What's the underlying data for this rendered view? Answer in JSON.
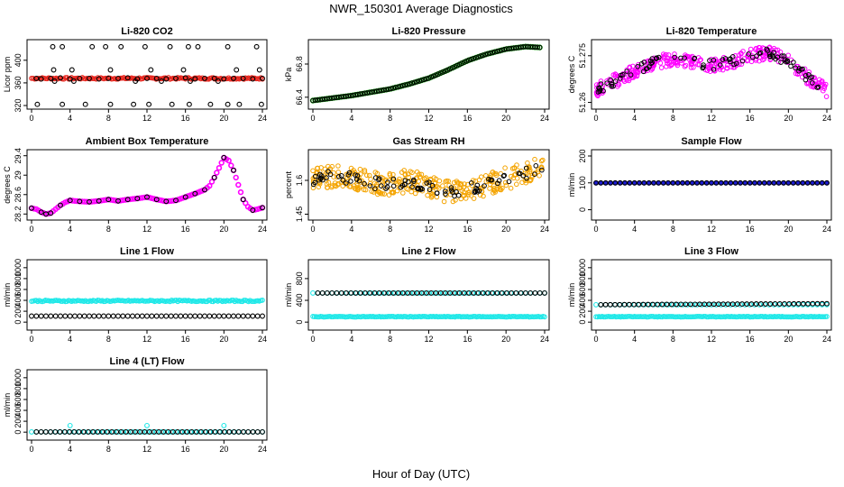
{
  "figure": {
    "title": "NWR_150301  Average Diagnostics",
    "xlabel": "Hour of Day (UTC)"
  },
  "colors": {
    "black": "#000000",
    "red": "#e8251d",
    "green": "#22c31f",
    "magenta": "#ff00ff",
    "orange": "#f4a400",
    "blue": "#1c1ccf",
    "cyan": "#1fe8e8"
  },
  "chart_data": [
    {
      "type": "scatter",
      "title": "Li-820 CO2",
      "ylabel": "Licor ppm",
      "xlim": [
        0,
        24
      ],
      "ylim": [
        320,
        430
      ],
      "xticks": [
        0,
        4,
        8,
        12,
        16,
        20,
        24
      ],
      "yticks": [
        320,
        360,
        400
      ],
      "series": [
        {
          "color": "red",
          "style": "band",
          "x": [
            0,
            24
          ],
          "y": [
            368,
            368
          ],
          "spread": 3
        },
        {
          "color": "black",
          "style": "points",
          "x": [
            0.5,
            1,
            2,
            3,
            4,
            5,
            6,
            7,
            8,
            9,
            10,
            11,
            12,
            13,
            14,
            15,
            16,
            17,
            18,
            19,
            20,
            21,
            22,
            23,
            24
          ],
          "y": [
            368,
            367,
            368,
            369,
            367,
            368,
            368,
            367,
            368,
            368,
            369,
            367,
            368,
            368,
            367,
            368,
            369,
            367,
            368,
            368,
            367,
            368,
            368,
            367,
            368
          ]
        },
        {
          "color": "black",
          "style": "points",
          "x": [
            2.2,
            2.3,
            2.4,
            3.2,
            4.2,
            4.4,
            6.3,
            7.7,
            8.2,
            9.3,
            10.8,
            11.8,
            12.4,
            13.5,
            14.4,
            15.8,
            16.3,
            16.5,
            17.3,
            19.4,
            20.4,
            21.3,
            23.4,
            23.7
          ],
          "y": [
            424,
            383,
            363,
            424,
            383,
            363,
            424,
            424,
            383,
            424,
            363,
            424,
            383,
            363,
            424,
            383,
            424,
            363,
            424,
            363,
            424,
            383,
            424,
            383
          ]
        },
        {
          "color": "black",
          "style": "points",
          "x": [
            0.6,
            3.2,
            5.6,
            8.2,
            10.6,
            12.2,
            14.6,
            16.4,
            18.6,
            20.4,
            21.6,
            23.9
          ],
          "y": [
            322,
            322,
            322,
            322,
            322,
            322,
            322,
            322,
            322,
            322,
            322,
            322
          ]
        }
      ]
    },
    {
      "type": "scatter",
      "title": "Li-820 Pressure",
      "ylabel": "kPa",
      "xlim": [
        0,
        24
      ],
      "ylim": [
        66.3,
        67.05
      ],
      "xticks": [
        0,
        4,
        8,
        12,
        16,
        20,
        24
      ],
      "yticks": [
        66.4,
        66.8
      ],
      "series": [
        {
          "color": "green",
          "style": "curve",
          "x": [
            0,
            2,
            4,
            6,
            8,
            10,
            12,
            14,
            16,
            18,
            20,
            22,
            23.5
          ],
          "y": [
            66.36,
            66.39,
            66.42,
            66.46,
            66.5,
            66.56,
            66.63,
            66.73,
            66.84,
            66.92,
            66.98,
            67.01,
            67.0
          ]
        },
        {
          "color": "black",
          "style": "curve",
          "x": [
            0,
            2,
            4,
            6,
            8,
            10,
            12,
            14,
            16,
            18,
            20,
            22,
            23.5
          ],
          "y": [
            66.36,
            66.39,
            66.42,
            66.46,
            66.5,
            66.56,
            66.63,
            66.73,
            66.84,
            66.92,
            66.98,
            67.01,
            67.0
          ]
        }
      ]
    },
    {
      "type": "scatter",
      "title": "Li-820 Temperature",
      "ylabel": "degrees C",
      "xlim": [
        0,
        24
      ],
      "ylim": [
        51.259,
        51.279
      ],
      "xticks": [
        0,
        4,
        8,
        12,
        16,
        20,
        24
      ],
      "yticks": [
        51.26,
        51.275
      ],
      "series": [
        {
          "color": "magenta",
          "style": "noisy",
          "x": [
            0,
            2,
            4,
            6,
            8,
            10,
            12,
            14,
            16,
            18,
            20,
            22,
            24
          ],
          "y": [
            51.264,
            51.267,
            51.27,
            51.273,
            51.274,
            51.273,
            51.272,
            51.273,
            51.275,
            51.276,
            51.273,
            51.268,
            51.264
          ],
          "spread": 0.0045
        },
        {
          "color": "black",
          "style": "noisy",
          "x": [
            0,
            2,
            4,
            6,
            8,
            10,
            12,
            14,
            16,
            18,
            20,
            22,
            24
          ],
          "y": [
            51.264,
            51.267,
            51.27,
            51.273,
            51.274,
            51.273,
            51.272,
            51.273,
            51.275,
            51.276,
            51.273,
            51.268,
            51.264
          ],
          "spread": 0.003
        }
      ]
    },
    {
      "type": "scatter",
      "title": "Ambient Box Temperature",
      "ylabel": "degrees C",
      "xlim": [
        0,
        24
      ],
      "ylim": [
        28.15,
        29.45
      ],
      "xticks": [
        0,
        4,
        8,
        12,
        16,
        20,
        24
      ],
      "yticks": [
        28.2,
        28.6,
        29.0,
        29.4
      ],
      "series": [
        {
          "color": "magenta",
          "style": "curve",
          "x": [
            0,
            0.5,
            1,
            1.5,
            2,
            2.5,
            3,
            3.5,
            4,
            5,
            6,
            7,
            8,
            9,
            10,
            11,
            12,
            13,
            14,
            15,
            16,
            17,
            18,
            18.5,
            19,
            19.5,
            20,
            20.5,
            21,
            21.5,
            22,
            22.5,
            23,
            23.5,
            24
          ],
          "y": [
            28.32,
            28.3,
            28.24,
            28.2,
            28.22,
            28.3,
            28.38,
            28.44,
            28.48,
            28.46,
            28.45,
            28.47,
            28.5,
            28.47,
            28.5,
            28.52,
            28.55,
            28.5,
            28.46,
            28.48,
            28.55,
            28.62,
            28.7,
            28.78,
            28.95,
            29.15,
            29.36,
            29.3,
            29.1,
            28.8,
            28.5,
            28.35,
            28.28,
            28.3,
            28.33
          ]
        },
        {
          "color": "black",
          "style": "points",
          "x": [
            0,
            1,
            1.5,
            2,
            3,
            4,
            5,
            6,
            7,
            8,
            9,
            10,
            11,
            12,
            13,
            14,
            15,
            16,
            17,
            18,
            19,
            20,
            21,
            22,
            23,
            24
          ],
          "y": [
            28.32,
            28.24,
            28.2,
            28.22,
            28.38,
            28.48,
            28.46,
            28.45,
            28.47,
            28.5,
            28.47,
            28.5,
            28.52,
            28.55,
            28.5,
            28.46,
            28.48,
            28.55,
            28.62,
            28.7,
            28.95,
            29.36,
            29.1,
            28.5,
            28.28,
            28.33
          ]
        }
      ]
    },
    {
      "type": "scatter",
      "title": "Gas Stream RH",
      "ylabel": "percent",
      "xlim": [
        0,
        24
      ],
      "ylim": [
        1.44,
        1.72
      ],
      "xticks": [
        0,
        4,
        8,
        12,
        16,
        20,
        24
      ],
      "yticks": [
        1.45,
        1.6
      ],
      "series": [
        {
          "color": "orange",
          "style": "noisy",
          "x": [
            0,
            2,
            4,
            6,
            8,
            10,
            12,
            14,
            16,
            18,
            20,
            22,
            24
          ],
          "y": [
            1.6,
            1.62,
            1.61,
            1.59,
            1.58,
            1.6,
            1.57,
            1.55,
            1.56,
            1.58,
            1.61,
            1.63,
            1.66
          ],
          "spread": 0.1
        },
        {
          "color": "black",
          "style": "noisy",
          "x": [
            0,
            2,
            4,
            6,
            8,
            10,
            12,
            14,
            16,
            18,
            20,
            22,
            24
          ],
          "y": [
            1.6,
            1.62,
            1.61,
            1.59,
            1.58,
            1.6,
            1.57,
            1.55,
            1.56,
            1.58,
            1.61,
            1.63,
            1.66
          ],
          "spread": 0.05
        }
      ]
    },
    {
      "type": "scatter",
      "title": "Sample Flow",
      "ylabel": "ml/min",
      "xlim": [
        0,
        24
      ],
      "ylim": [
        -25,
        210
      ],
      "xticks": [
        0,
        4,
        8,
        12,
        16,
        20,
        24
      ],
      "yticks": [
        0,
        100,
        200
      ],
      "series": [
        {
          "color": "blue",
          "style": "points",
          "x": [
            0,
            24
          ],
          "y": [
            100,
            100
          ],
          "fill": true
        },
        {
          "color": "black",
          "style": "points",
          "x": [
            0,
            24
          ],
          "y": [
            100,
            100
          ]
        }
      ]
    },
    {
      "type": "scatter",
      "title": "Line 1 Flow",
      "ylabel": "ml/min",
      "xlim": [
        0,
        24
      ],
      "ylim": [
        -80,
        1080
      ],
      "xticks": [
        0,
        4,
        8,
        12,
        16,
        20,
        24
      ],
      "yticks": [
        0,
        200,
        400,
        600,
        800,
        1000
      ],
      "series": [
        {
          "color": "cyan",
          "style": "band",
          "x": [
            0,
            24
          ],
          "y": [
            390,
            390
          ],
          "spread": 25
        },
        {
          "color": "black",
          "style": "points",
          "x": [
            0,
            24
          ],
          "y": [
            110,
            110
          ]
        }
      ]
    },
    {
      "type": "scatter",
      "title": "Line 2 Flow",
      "ylabel": "ml/min",
      "xlim": [
        0,
        24
      ],
      "ylim": [
        -80,
        1080
      ],
      "xticks": [
        0,
        4,
        8,
        12,
        16,
        20,
        24
      ],
      "yticks": [
        0,
        400,
        800
      ],
      "series": [
        {
          "color": "cyan",
          "style": "band",
          "x": [
            0,
            24
          ],
          "y": [
            100,
            100
          ],
          "spread": 12
        },
        {
          "color": "cyan",
          "style": "points",
          "x": [
            0,
            24
          ],
          "y": [
            535,
            535
          ]
        },
        {
          "color": "black",
          "style": "points",
          "x": [
            0.5,
            24
          ],
          "y": [
            535,
            535
          ]
        }
      ]
    },
    {
      "type": "scatter",
      "title": "Line 3 Flow",
      "ylabel": "ml/min",
      "xlim": [
        0,
        24
      ],
      "ylim": [
        -80,
        1080
      ],
      "xticks": [
        0,
        4,
        8,
        12,
        16,
        20,
        24
      ],
      "yticks": [
        0,
        200,
        400,
        600,
        800,
        1000
      ],
      "series": [
        {
          "color": "cyan",
          "style": "band",
          "x": [
            0,
            24
          ],
          "y": [
            100,
            100
          ],
          "spread": 12
        },
        {
          "color": "cyan",
          "style": "points",
          "x": [
            0,
            24
          ],
          "y": [
            320,
            320
          ]
        },
        {
          "color": "black",
          "style": "points",
          "x": [
            0.5,
            24
          ],
          "y": [
            320,
            340
          ]
        }
      ]
    },
    {
      "type": "scatter",
      "title": "Line 4 (LT) Flow",
      "ylabel": "ml/min",
      "xlim": [
        0,
        24
      ],
      "ylim": [
        -80,
        1080
      ],
      "xticks": [
        0,
        4,
        8,
        12,
        16,
        20,
        24
      ],
      "yticks": [
        0,
        200,
        400,
        600,
        800,
        1000
      ],
      "series": [
        {
          "color": "cyan",
          "style": "points",
          "x": [
            0,
            24
          ],
          "y": [
            5,
            5
          ]
        },
        {
          "color": "cyan",
          "style": "points",
          "x": [
            4,
            12,
            20
          ],
          "y": [
            120,
            120,
            120
          ],
          "explicit": true
        },
        {
          "color": "black",
          "style": "points",
          "x": [
            0.5,
            24
          ],
          "y": [
            5,
            5
          ]
        }
      ]
    }
  ]
}
